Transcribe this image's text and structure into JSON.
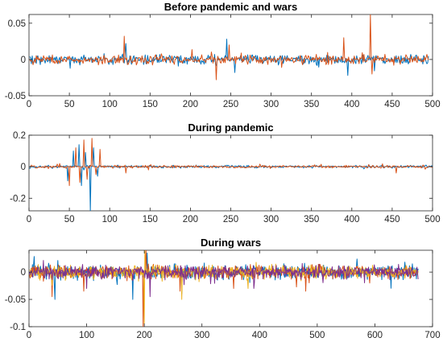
{
  "chart_data": [
    {
      "type": "line",
      "title": "Before pandemic and wars",
      "xlabel": "",
      "ylabel": "",
      "xlim": [
        0,
        500
      ],
      "ylim": [
        -0.05,
        0.062
      ],
      "xticks": [
        0,
        50,
        100,
        150,
        200,
        250,
        300,
        350,
        400,
        450,
        500
      ],
      "yticks": [
        -0.05,
        0,
        0.05
      ],
      "ytick_labels": [
        "-0.05",
        "0",
        "0.05"
      ],
      "grid": false,
      "n_points": 495,
      "noise_amplitude": 0.009,
      "series": [
        {
          "color": "#0072BD",
          "spikes": [
            [
              120,
              0.022
            ],
            [
              245,
              0.028
            ],
            [
              255,
              -0.018
            ],
            [
              395,
              -0.022
            ]
          ]
        },
        {
          "color": "#D95319",
          "spikes": [
            [
              118,
              0.032
            ],
            [
              232,
              -0.028
            ],
            [
              248,
              0.02
            ],
            [
              390,
              0.03
            ],
            [
              423,
              0.062
            ],
            [
              425,
              -0.02
            ]
          ]
        }
      ]
    },
    {
      "type": "line",
      "title": "During pandemic",
      "xlabel": "",
      "ylabel": "",
      "xlim": [
        0,
        500
      ],
      "ylim": [
        -0.28,
        0.2
      ],
      "xticks": [
        0,
        50,
        100,
        150,
        200,
        250,
        300,
        350,
        400,
        450,
        500
      ],
      "yticks": [
        -0.2,
        0,
        0.2
      ],
      "ytick_labels": [
        "-0.2",
        "0",
        "0.2"
      ],
      "grid": false,
      "n_points": 500,
      "noise_amplitude": 0.012,
      "series": [
        {
          "color": "#0072BD",
          "spikes": [
            [
              48,
              -0.09
            ],
            [
              55,
              0.1
            ],
            [
              62,
              0.14
            ],
            [
              65,
              -0.12
            ],
            [
              70,
              0.09
            ],
            [
              76,
              -0.28
            ],
            [
              80,
              0.12
            ],
            [
              85,
              -0.06
            ]
          ]
        },
        {
          "color": "#D95319",
          "spikes": [
            [
              50,
              -0.12
            ],
            [
              58,
              0.12
            ],
            [
              63,
              -0.1
            ],
            [
              68,
              0.17
            ],
            [
              72,
              -0.08
            ],
            [
              78,
              0.18
            ],
            [
              83,
              -0.05
            ],
            [
              88,
              0.11
            ],
            [
              120,
              -0.04
            ],
            [
              455,
              -0.04
            ]
          ]
        }
      ]
    },
    {
      "type": "line",
      "title": "During wars",
      "xlabel": "",
      "ylabel": "",
      "xlim": [
        0,
        700
      ],
      "ylim": [
        -0.1,
        0.04
      ],
      "xticks": [
        0,
        100,
        200,
        300,
        400,
        500,
        600,
        700
      ],
      "yticks": [
        -0.1,
        -0.05,
        0
      ],
      "ytick_labels": [
        "-0.1",
        "-0.05",
        "0"
      ],
      "grid": false,
      "n_points": 675,
      "noise_amplitude": 0.017,
      "series": [
        {
          "color": "#0072BD",
          "spikes": [
            [
              45,
              -0.05
            ],
            [
              180,
              -0.05
            ],
            [
              205,
              0.035
            ],
            [
              265,
              -0.04
            ]
          ]
        },
        {
          "color": "#D95319",
          "spikes": [
            [
              40,
              -0.045
            ],
            [
              95,
              -0.035
            ],
            [
              198,
              -0.1
            ],
            [
              203,
              0.04
            ],
            [
              262,
              -0.035
            ],
            [
              355,
              -0.03
            ],
            [
              480,
              -0.035
            ]
          ]
        },
        {
          "color": "#EDB120",
          "spikes": [
            [
              200,
              -0.095
            ],
            [
              201,
              0.04
            ],
            [
              265,
              -0.05
            ],
            [
              380,
              -0.03
            ]
          ]
        },
        {
          "color": "#7E2F8E",
          "spikes": [
            [
              100,
              -0.03
            ],
            [
              210,
              -0.045
            ],
            [
              390,
              -0.03
            ]
          ]
        }
      ]
    }
  ]
}
